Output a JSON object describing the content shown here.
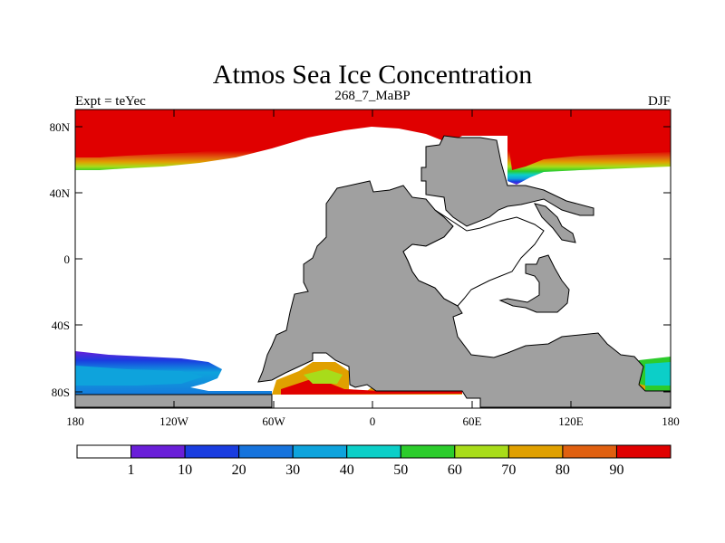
{
  "title": "Atmos Sea Ice Concentration",
  "subtitle_left": "Expt = teYec",
  "subtitle_center": "268_7_MaBP",
  "subtitle_right": "DJF",
  "lat_ticks": [
    "80N",
    "40N",
    "0",
    "40S",
    "80S"
  ],
  "lon_ticks": [
    "180",
    "120W",
    "60W",
    "0",
    "60E",
    "120E",
    "180"
  ],
  "colorbar": {
    "colors": [
      "#ffffff",
      "#6a1fd8",
      "#1a3de0",
      "#1673dc",
      "#0ea3dc",
      "#0ccfc8",
      "#2ccc2c",
      "#a8dc1a",
      "#e0a000",
      "#e06010",
      "#e00000"
    ],
    "labels": [
      "1",
      "10",
      "20",
      "30",
      "40",
      "50",
      "60",
      "70",
      "80",
      "90"
    ]
  },
  "colors": {
    "land": "#a0a0a0",
    "ocean": "#ffffff",
    "ice_max": "#e00000"
  }
}
